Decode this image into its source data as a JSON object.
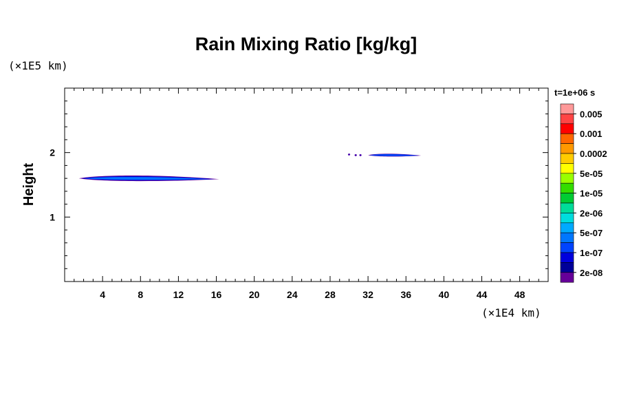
{
  "chart_data": {
    "type": "contour",
    "title": "Rain Mixing Ratio [kg/kg]",
    "ylabel": "Height",
    "xlabel": "",
    "x_unit": "(×1E4 km)",
    "y_unit": "(×1E5 km)",
    "xlim": [
      0,
      51
    ],
    "ylim": [
      0,
      3
    ],
    "x_ticks": [
      4,
      8,
      12,
      16,
      20,
      24,
      28,
      32,
      36,
      40,
      44,
      48
    ],
    "y_ticks": [
      1,
      2
    ],
    "x_minor_step": 1,
    "y_minor_step": 0.2,
    "colorbar": {
      "time_label": "t=1e+06 s",
      "levels": [
        "0.005",
        "0.001",
        "0.0002",
        "5e-05",
        "1e-05",
        "2e-06",
        "5e-07",
        "1e-07",
        "2e-08"
      ],
      "colors": [
        "#ff9999",
        "#ff4444",
        "#ff0000",
        "#ff6600",
        "#ff9900",
        "#ffcc00",
        "#ffff00",
        "#99ff00",
        "#33dd00",
        "#00cc33",
        "#00dd99",
        "#00dddd",
        "#00aaff",
        "#0077ff",
        "#0044ff",
        "#0000dd",
        "#000099",
        "#660099"
      ]
    },
    "features": [
      {
        "name": "lower rain layer",
        "x_range": [
          1.5,
          16.3
        ],
        "y_center": 1.6,
        "thickness": 0.12,
        "colors": [
          "#660099",
          "#0000cc",
          "#0055ff",
          "#0077ff"
        ]
      },
      {
        "name": "upper rain layer",
        "x_range": [
          32,
          37.6
        ],
        "y_center": 1.96,
        "thickness": 0.06,
        "colors": [
          "#660099",
          "#0000cc",
          "#0055ff"
        ]
      },
      {
        "name": "upper rain specks",
        "points": [
          [
            30.0,
            1.97
          ],
          [
            30.7,
            1.96
          ],
          [
            31.2,
            1.96
          ]
        ],
        "color": "#4400aa"
      }
    ]
  }
}
